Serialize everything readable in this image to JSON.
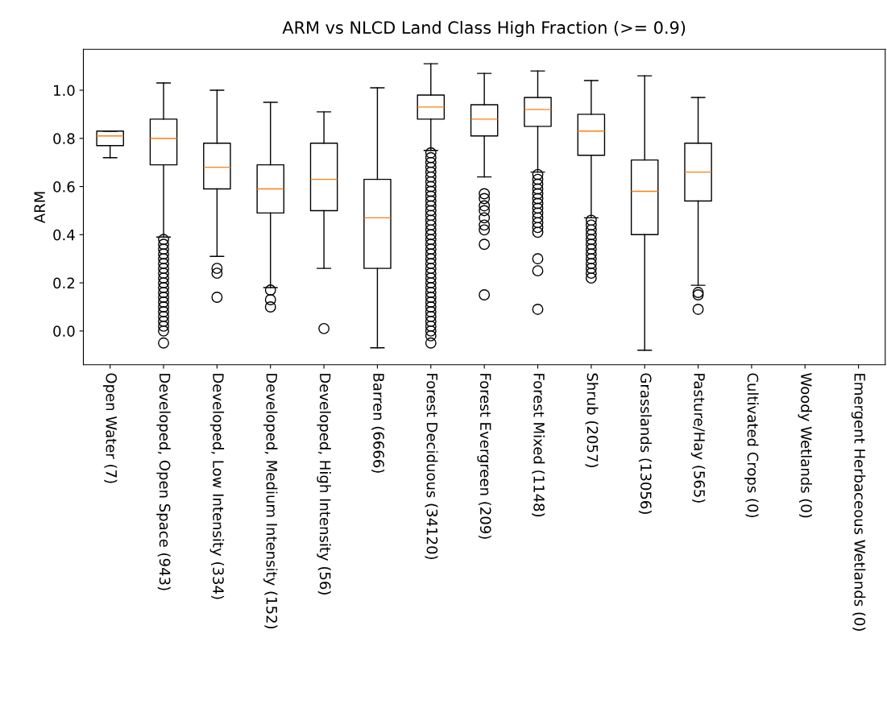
{
  "chart_data": {
    "type": "box",
    "title": "ARM vs NLCD Land Class High Fraction (>= 0.9)",
    "ylabel": "ARM",
    "categories": [
      "Open Water (7)",
      "Developed, Open Space (943)",
      "Developed, Low Intensity (334)",
      "Developed, Medium Intensity (152)",
      "Developed, High Intensity (56)",
      "Barren (6666)",
      "Forest Deciduous (34120)",
      "Forest Evergreen (209)",
      "Forest Mixed (1148)",
      "Shrub (2057)",
      "Grasslands (13056)",
      "Pasture/Hay (565)",
      "Cultivated Crops (0)",
      "Woody Wetlands (0)",
      "Emergent Herbaceous Wetlands (0)"
    ],
    "boxes": [
      {
        "low": 0.72,
        "q1": 0.77,
        "median": 0.81,
        "q3": 0.83,
        "high": 0.83
      },
      {
        "low": 0.39,
        "q1": 0.69,
        "median": 0.8,
        "q3": 0.88,
        "high": 1.03,
        "outliers": [
          0.38,
          0.36,
          0.34,
          0.32,
          0.3,
          0.28,
          0.26,
          0.24,
          0.22,
          0.2,
          0.18,
          0.16,
          0.14,
          0.12,
          0.1,
          0.08,
          0.06,
          0.04,
          0.02,
          0.0,
          -0.05
        ]
      },
      {
        "low": 0.31,
        "q1": 0.59,
        "median": 0.68,
        "q3": 0.78,
        "high": 1.0,
        "outliers": [
          0.26,
          0.24,
          0.14
        ]
      },
      {
        "low": 0.18,
        "q1": 0.49,
        "median": 0.59,
        "q3": 0.69,
        "high": 0.95,
        "outliers": [
          0.17,
          0.13,
          0.1
        ]
      },
      {
        "low": 0.26,
        "q1": 0.5,
        "median": 0.63,
        "q3": 0.78,
        "high": 0.91,
        "outliers": [
          0.01
        ]
      },
      {
        "low": -0.07,
        "q1": 0.26,
        "median": 0.47,
        "q3": 0.63,
        "high": 1.01
      },
      {
        "low": 0.75,
        "q1": 0.88,
        "median": 0.93,
        "q3": 0.98,
        "high": 1.11,
        "outliers": [
          0.74,
          0.72,
          0.7,
          0.68,
          0.66,
          0.64,
          0.62,
          0.6,
          0.58,
          0.56,
          0.54,
          0.52,
          0.5,
          0.48,
          0.46,
          0.44,
          0.42,
          0.4,
          0.38,
          0.36,
          0.34,
          0.32,
          0.3,
          0.28,
          0.26,
          0.24,
          0.22,
          0.2,
          0.18,
          0.16,
          0.14,
          0.12,
          0.1,
          0.08,
          0.06,
          0.04,
          0.02,
          0.0,
          -0.02,
          -0.05
        ]
      },
      {
        "low": 0.64,
        "q1": 0.81,
        "median": 0.88,
        "q3": 0.94,
        "high": 1.07,
        "outliers": [
          0.57,
          0.55,
          0.52,
          0.5,
          0.47,
          0.44,
          0.42,
          0.36,
          0.15
        ]
      },
      {
        "low": 0.66,
        "q1": 0.85,
        "median": 0.92,
        "q3": 0.97,
        "high": 1.08,
        "outliers": [
          0.65,
          0.63,
          0.61,
          0.59,
          0.57,
          0.55,
          0.53,
          0.51,
          0.49,
          0.47,
          0.45,
          0.43,
          0.41,
          0.3,
          0.25,
          0.09
        ]
      },
      {
        "low": 0.47,
        "q1": 0.73,
        "median": 0.83,
        "q3": 0.9,
        "high": 1.04,
        "outliers": [
          0.46,
          0.44,
          0.42,
          0.4,
          0.38,
          0.36,
          0.34,
          0.32,
          0.3,
          0.28,
          0.26,
          0.24,
          0.22
        ]
      },
      {
        "low": -0.08,
        "q1": 0.4,
        "median": 0.58,
        "q3": 0.71,
        "high": 1.06
      },
      {
        "low": 0.19,
        "q1": 0.54,
        "median": 0.66,
        "q3": 0.78,
        "high": 0.97,
        "outliers": [
          0.16,
          0.15,
          0.09
        ]
      },
      null,
      null,
      null
    ],
    "ylim": [
      -0.14,
      1.17
    ],
    "yticks": [
      {
        "value": 0,
        "label": "0.0"
      },
      0.2,
      0.4,
      0.6,
      0.8,
      {
        "value": 1,
        "label": "1.0"
      }
    ],
    "grid": false
  }
}
